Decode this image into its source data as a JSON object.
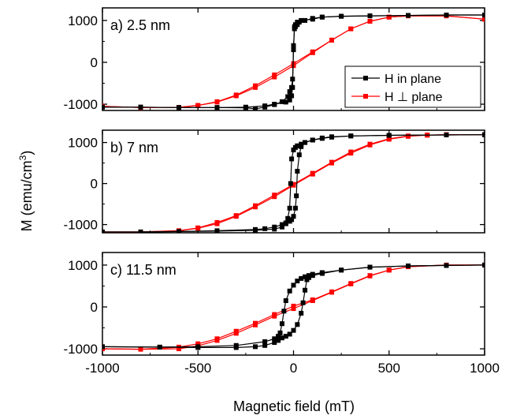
{
  "chart_data": {
    "type": "line",
    "xlabel": "Magnetic field (mT)",
    "ylabel_main": "M (emu/cm",
    "ylabel_sup": "3",
    "ylabel_close": ")",
    "xlim": [
      -1000,
      1000
    ],
    "xticks": [
      "-1000",
      "-500",
      "0",
      "500",
      "1000"
    ],
    "legend": {
      "placement": "panel-a-right",
      "entries": [
        "H in plane",
        "H ⊥ plane"
      ]
    },
    "colors": {
      "in_plane": "#000000",
      "perp_plane": "#ff0000"
    },
    "panels": [
      {
        "label": "a)  2.5 nm",
        "ylim": [
          -1150,
          1300
        ],
        "yticks": [
          "-1000",
          "0",
          "1000"
        ],
        "series": [
          {
            "name": "H in plane",
            "color": "#000000",
            "branches": [
              {
                "x": [
                  -1000,
                  -800,
                  -600,
                  -400,
                  -250,
                  -200,
                  -150,
                  -100,
                  -60,
                  -30,
                  -20,
                  -10,
                  -5,
                  0,
                  5,
                  10,
                  20,
                  40,
                  100,
                  150,
                  250,
                  400,
                  600,
                  800,
                  1000
                ],
                "y": [
                  -1070,
                  -1070,
                  -1080,
                  -1080,
                  -1085,
                  -1110,
                  -1070,
                  -1010,
                  -940,
                  -820,
                  -700,
                  -600,
                  -400,
                  300,
                  850,
                  900,
                  960,
                  1000,
                  1030,
                  1080,
                  1100,
                  1110,
                  1120,
                  1130,
                  1130
                ]
              },
              {
                "x": [
                  1000,
                  800,
                  600,
                  400,
                  250,
                  150,
                  100,
                  60,
                  30,
                  20,
                  10,
                  5,
                  0,
                  -5,
                  -10,
                  -20,
                  -40,
                  -100,
                  -150,
                  -250,
                  -400,
                  -600,
                  -800,
                  -1000
                ],
                "y": [
                  1130,
                  1130,
                  1120,
                  1110,
                  1100,
                  1080,
                  1050,
                  1000,
                  960,
                  900,
                  850,
                  800,
                  400,
                  -600,
                  -800,
                  -900,
                  -950,
                  -1000,
                  -1040,
                  -1070,
                  -1080,
                  -1080,
                  -1070,
                  -1070
                ]
              }
            ]
          },
          {
            "name": "H ⊥ plane",
            "color": "#ff0000",
            "branches": [
              {
                "x": [
                  -1000,
                  -800,
                  -600,
                  -500,
                  -400,
                  -300,
                  -200,
                  -100,
                  0,
                  100,
                  200,
                  300,
                  400,
                  500,
                  600,
                  800,
                  1000
                ],
                "y": [
                  -1050,
                  -1080,
                  -1075,
                  -1030,
                  -950,
                  -800,
                  -600,
                  -350,
                  -80,
                  230,
                  530,
                  800,
                  980,
                  1080,
                  1110,
                  1110,
                  1030
                ]
              },
              {
                "x": [
                  1000,
                  800,
                  600,
                  500,
                  400,
                  300,
                  200,
                  100,
                  0,
                  -100,
                  -200,
                  -300,
                  -400,
                  -500,
                  -600,
                  -800,
                  -1000
                ],
                "y": [
                  1030,
                  1110,
                  1110,
                  1080,
                  980,
                  800,
                  530,
                  250,
                  -30,
                  -300,
                  -560,
                  -780,
                  -940,
                  -1030,
                  -1075,
                  -1080,
                  -1050
                ]
              }
            ]
          }
        ]
      },
      {
        "label": "b)  7 nm",
        "ylim": [
          -1200,
          1300
        ],
        "yticks": [
          "-1000",
          "0",
          "1000"
        ],
        "series": [
          {
            "name": "H in plane",
            "color": "#000000",
            "branches": [
              {
                "x": [
                  -1000,
                  -800,
                  -600,
                  -400,
                  -200,
                  -100,
                  -60,
                  -40,
                  -30,
                  -20,
                  -15,
                  -10,
                  0,
                  10,
                  20,
                  40,
                  60,
                  100,
                  150,
                  200,
                  300,
                  500,
                  800,
                  1000
                ],
                "y": [
                  -1180,
                  -1180,
                  -1170,
                  -1160,
                  -1140,
                  -1110,
                  -1060,
                  -980,
                  -850,
                  -600,
                  0,
                  600,
                  820,
                  880,
                  920,
                  960,
                  1000,
                  1060,
                  1100,
                  1130,
                  1160,
                  1175,
                  1185,
                  1190
                ]
              },
              {
                "x": [
                  1000,
                  800,
                  500,
                  300,
                  200,
                  150,
                  100,
                  60,
                  40,
                  30,
                  20,
                  15,
                  10,
                  0,
                  -10,
                  -20,
                  -40,
                  -60,
                  -100,
                  -150,
                  -200,
                  -400,
                  -600,
                  -800,
                  -1000
                ],
                "y": [
                  1190,
                  1185,
                  1175,
                  1160,
                  1140,
                  1110,
                  1060,
                  1000,
                  900,
                  700,
                  300,
                  -300,
                  -600,
                  -800,
                  -880,
                  -920,
                  -960,
                  -1000,
                  -1060,
                  -1100,
                  -1120,
                  -1150,
                  -1170,
                  -1180,
                  -1180
                ]
              }
            ]
          },
          {
            "name": "H ⊥ plane",
            "color": "#ff0000",
            "branches": [
              {
                "x": [
                  -1000,
                  -800,
                  -600,
                  -500,
                  -400,
                  -300,
                  -200,
                  -100,
                  0,
                  100,
                  200,
                  300,
                  400,
                  500,
                  600,
                  700,
                  800,
                  1000
                ],
                "y": [
                  -1180,
                  -1180,
                  -1150,
                  -1080,
                  -950,
                  -780,
                  -540,
                  -280,
                  -20,
                  250,
                  520,
                  770,
                  960,
                  1090,
                  1160,
                  1180,
                  1190,
                  1190
                ]
              },
              {
                "x": [
                  1000,
                  800,
                  700,
                  600,
                  500,
                  400,
                  300,
                  200,
                  100,
                  0,
                  -100,
                  -200,
                  -300,
                  -400,
                  -500,
                  -600,
                  -800,
                  -1000
                ],
                "y": [
                  1190,
                  1190,
                  1180,
                  1150,
                  1080,
                  940,
                  740,
                  500,
                  230,
                  -40,
                  -320,
                  -570,
                  -800,
                  -980,
                  -1090,
                  -1150,
                  -1180,
                  -1180
                ]
              }
            ]
          }
        ]
      },
      {
        "label": "c)  11.5 nm",
        "ylim": [
          -1150,
          1300
        ],
        "yticks": [
          "-1000",
          "0",
          "1000"
        ],
        "series": [
          {
            "name": "H in plane",
            "color": "#000000",
            "branches": [
              {
                "x": [
                  -1000,
                  -700,
                  -500,
                  -300,
                  -200,
                  -150,
                  -100,
                  -80,
                  -60,
                  -40,
                  -20,
                  0,
                  20,
                  40,
                  50,
                  60,
                  70,
                  80,
                  100,
                  150,
                  250,
                  400,
                  600,
                  800,
                  1000
                ],
                "y": [
                  -950,
                  -960,
                  -970,
                  -970,
                  -950,
                  -920,
                  -850,
                  -800,
                  -740,
                  -700,
                  -650,
                  -560,
                  -420,
                  -150,
                  100,
                  400,
                  650,
                  700,
                  750,
                  800,
                  880,
                  950,
                  980,
                  990,
                  1000
                ]
              },
              {
                "x": [
                  1000,
                  800,
                  600,
                  400,
                  250,
                  150,
                  100,
                  80,
                  60,
                  40,
                  20,
                  0,
                  -20,
                  -40,
                  -50,
                  -60,
                  -70,
                  -80,
                  -100,
                  -150,
                  -300,
                  -500,
                  -700,
                  -1000
                ],
                "y": [
                  1000,
                  990,
                  980,
                  950,
                  880,
                  820,
                  780,
                  750,
                  720,
                  680,
                  620,
                  520,
                  380,
                  150,
                  -100,
                  -400,
                  -620,
                  -700,
                  -760,
                  -830,
                  -920,
                  -950,
                  -960,
                  -950
                ]
              }
            ]
          },
          {
            "name": "H ⊥ plane",
            "color": "#ff0000",
            "branches": [
              {
                "x": [
                  -1000,
                  -800,
                  -600,
                  -500,
                  -400,
                  -300,
                  -200,
                  -100,
                  0,
                  100,
                  200,
                  300,
                  400,
                  500,
                  600,
                  800,
                  1000
                ],
                "y": [
                  -1000,
                  -1010,
                  -1000,
                  -930,
                  -800,
                  -630,
                  -430,
                  -220,
                  -40,
                  150,
                  350,
                  550,
                  740,
                  880,
                  960,
                  1000,
                  1000
                ]
              },
              {
                "x": [
                  1000,
                  800,
                  600,
                  500,
                  400,
                  300,
                  200,
                  100,
                  0,
                  -100,
                  -200,
                  -300,
                  -400,
                  -500,
                  -600,
                  -800,
                  -1000
                ],
                "y": [
                  1000,
                  1000,
                  960,
                  880,
                  750,
                  560,
                  360,
                  170,
                  20,
                  -180,
                  -390,
                  -580,
                  -760,
                  -880,
                  -960,
                  -1010,
                  -1000
                ]
              }
            ]
          }
        ]
      }
    ]
  }
}
